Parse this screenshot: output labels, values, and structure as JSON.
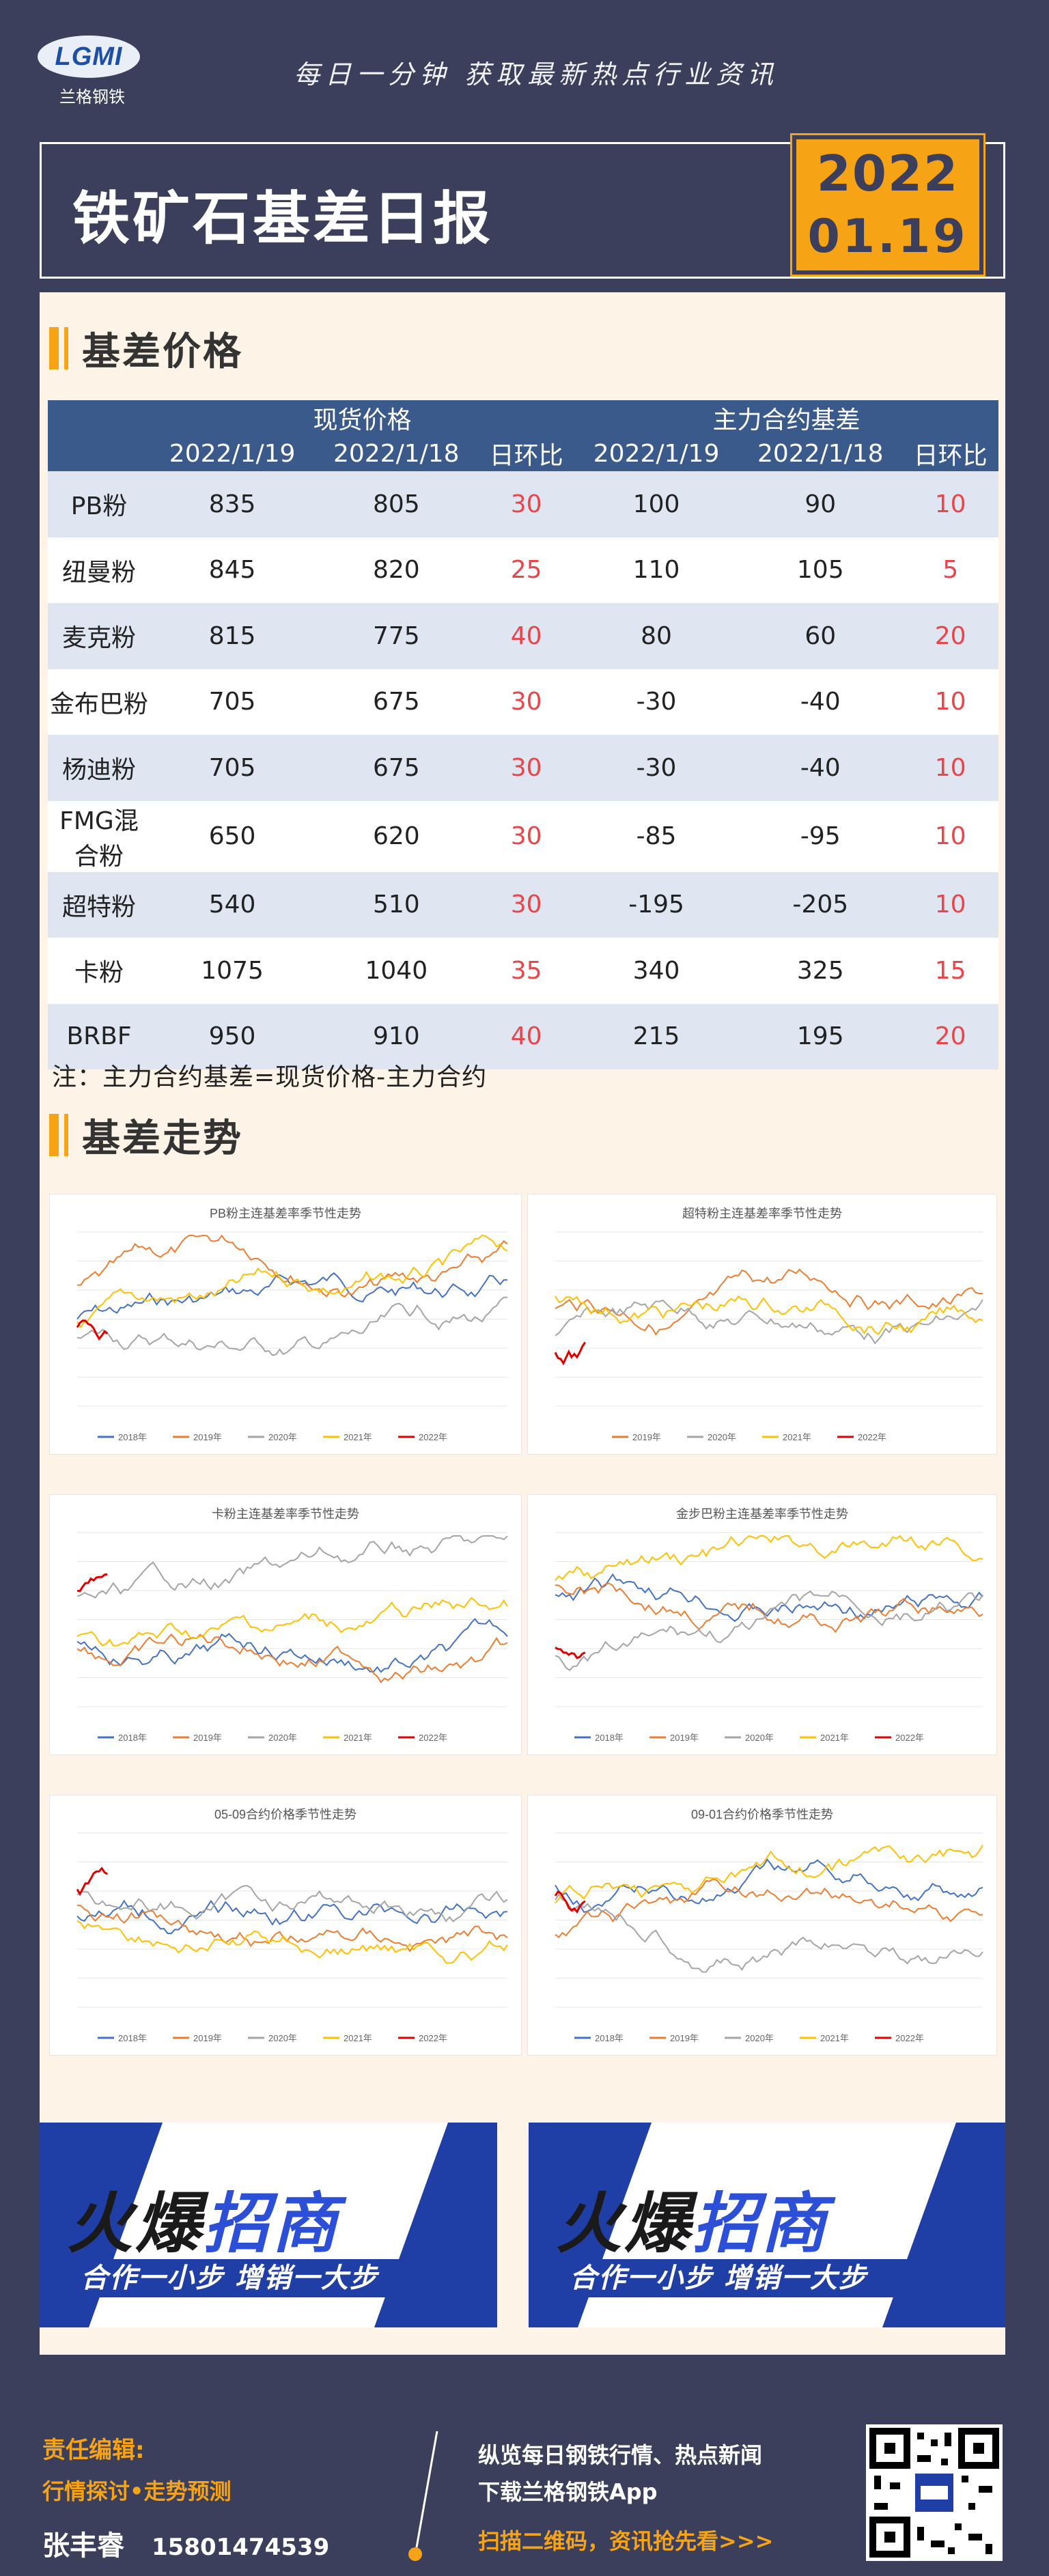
{
  "header": {
    "logo_text": "LGMI",
    "logo_sub": "兰格钢铁",
    "slogan": "每日一分钟  获取最新热点行业资讯",
    "title": "铁矿石基差日报",
    "date_year": "2022",
    "date_day": "01.19"
  },
  "sections": {
    "price": "基差价格",
    "trend": "基差走势"
  },
  "table": {
    "group_spot": "现货价格",
    "group_basis": "主力合约基差",
    "col1": "2022/1/19",
    "col2": "2022/1/18",
    "col3": "日环比",
    "col4": "2022/1/19",
    "col5": "2022/1/18",
    "col6": "日环比",
    "rows": [
      {
        "name": "PB粉",
        "s1": "835",
        "s2": "805",
        "sd": "30",
        "b1": "100",
        "b2": "90",
        "bd": "10"
      },
      {
        "name": "纽曼粉",
        "s1": "845",
        "s2": "820",
        "sd": "25",
        "b1": "110",
        "b2": "105",
        "bd": "5"
      },
      {
        "name": "麦克粉",
        "s1": "815",
        "s2": "775",
        "sd": "40",
        "b1": "80",
        "b2": "60",
        "bd": "20"
      },
      {
        "name": "金布巴粉",
        "s1": "705",
        "s2": "675",
        "sd": "30",
        "b1": "-30",
        "b2": "-40",
        "bd": "10"
      },
      {
        "name": "杨迪粉",
        "s1": "705",
        "s2": "675",
        "sd": "30",
        "b1": "-30",
        "b2": "-40",
        "bd": "10"
      },
      {
        "name": "FMG混合粉",
        "s1": "650",
        "s2": "620",
        "sd": "30",
        "b1": "-85",
        "b2": "-95",
        "bd": "10"
      },
      {
        "name": "超特粉",
        "s1": "540",
        "s2": "510",
        "sd": "30",
        "b1": "-195",
        "b2": "-205",
        "bd": "10"
      },
      {
        "name": "卡粉",
        "s1": "1075",
        "s2": "1040",
        "sd": "35",
        "b1": "340",
        "b2": "325",
        "bd": "15"
      },
      {
        "name": "BRBF",
        "s1": "950",
        "s2": "910",
        "sd": "40",
        "b1": "215",
        "b2": "195",
        "bd": "20"
      }
    ],
    "note": "注：主力合约基差=现货价格-主力合约"
  },
  "charts": [
    {
      "title": "PB粉主连基差率季节性走势",
      "legend": [
        "2018年",
        "2019年",
        "2020年",
        "2021年",
        "2022年"
      ]
    },
    {
      "title": "超特粉主连基差率季节性走势",
      "legend": [
        "2019年",
        "2020年",
        "2021年",
        "2022年"
      ]
    },
    {
      "title": "卡粉主连基差率季节性走势",
      "legend": [
        "2018年",
        "2019年",
        "2020年",
        "2021年",
        "2022年"
      ]
    },
    {
      "title": "金步巴粉主连基差率季节性走势",
      "legend": [
        "2018年",
        "2019年",
        "2020年",
        "2021年",
        "2022年"
      ]
    },
    {
      "title": "05-09合约价格季节性走势",
      "legend": [
        "2018年",
        "2019年",
        "2020年",
        "2021年",
        "2022年"
      ]
    },
    {
      "title": "09-01合约价格季节性走势",
      "legend": [
        "2018年",
        "2019年",
        "2020年",
        "2021年",
        "2022年"
      ]
    }
  ],
  "ads": [
    {
      "title_a": "火爆",
      "title_b": "招商",
      "sub": "合作一小步  增销一大步"
    },
    {
      "title_a": "火爆",
      "title_b": "招商",
      "sub": "合作一小步  增销一大步"
    }
  ],
  "footer": {
    "editor": "责任编辑:",
    "topic": "行情探讨•走势预测",
    "name": "张丰睿",
    "phone": "15801474539",
    "line1": "纵览每日钢铁行情、热点新闻",
    "line2": "下载兰格钢铁App",
    "line3": "扫描二维码，资讯抢先看>>>"
  },
  "colors": {
    "navy": "#3b3f5c",
    "orange": "#f6a316",
    "header_blue": "#3a5a8c",
    "red": "#e8464b"
  }
}
